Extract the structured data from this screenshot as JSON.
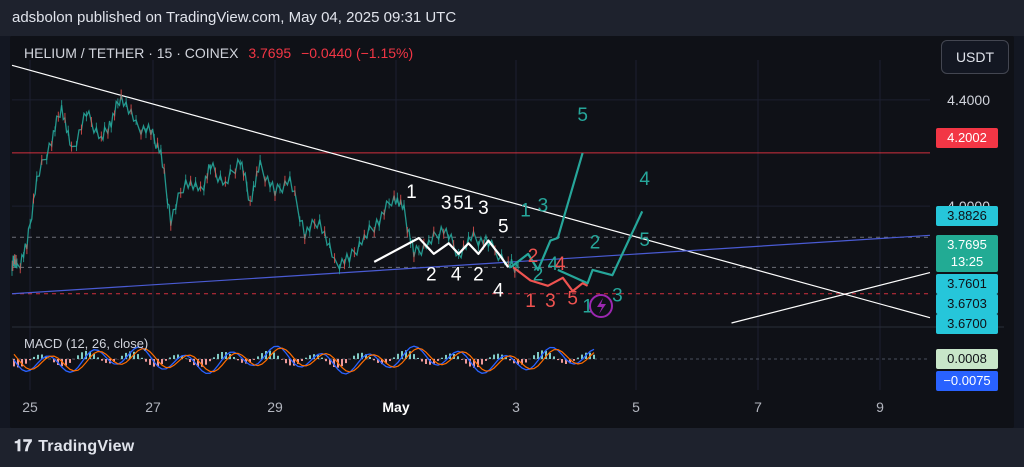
{
  "header": {
    "text": "adsbolon published on TradingView.com, May 04, 2025 09:31 UTC"
  },
  "symbol": {
    "name": "HELIUM / TETHER · 15 · COINEX",
    "price": "3.7695",
    "change": "−0.0440 (−1.15%)"
  },
  "currency_button": "USDT",
  "price_tags": [
    {
      "label": "4.2002",
      "bg": "#f23645",
      "color": "#ffffff"
    },
    {
      "label": "3.8826",
      "bg": "#26c6da",
      "color": "#0f1117"
    },
    {
      "label": "3.7695",
      "bg": "#22ab94",
      "color": "#ffffff"
    },
    {
      "label": "13:25",
      "bg": "#22ab94",
      "color": "#ffffff"
    },
    {
      "label": "3.7601",
      "bg": "#26c6da",
      "color": "#0f1117"
    },
    {
      "label": "3.6703",
      "bg": "#26c6da",
      "color": "#0f1117"
    },
    {
      "label": "3.6700",
      "bg": "#26c6da",
      "color": "#0f1117"
    }
  ],
  "macd": {
    "label": "MACD (12, 26, close)",
    "tags": [
      {
        "label": "0.0008",
        "bg": "#c8e6c9",
        "color": "#0f1117"
      },
      {
        "label": "−0.0075",
        "bg": "#2962ff",
        "color": "#ffffff"
      }
    ]
  },
  "footer": {
    "brand": "TradingView"
  },
  "chart_data": {
    "type": "line",
    "symbol": "HELIUM / TETHER",
    "interval": "15",
    "exchange": "COINEX",
    "last_price": 3.7695,
    "change": -0.044,
    "change_pct": -1.15,
    "x_ticks": [
      "25",
      "27",
      "29",
      "May",
      "3",
      "5",
      "7",
      "9"
    ],
    "y_ticks": [
      "4.4000",
      "4.0000"
    ],
    "ylim": [
      3.56,
      4.55
    ],
    "price_path": [
      {
        "t": 0,
        "p": 3.78
      },
      {
        "t": 0.05,
        "p": 3.8
      },
      {
        "t": 0.1,
        "p": 3.76
      },
      {
        "t": 0.3,
        "p": 3.85
      },
      {
        "t": 0.5,
        "p": 4.1
      },
      {
        "t": 0.8,
        "p": 4.25
      },
      {
        "t": 1.0,
        "p": 4.38
      },
      {
        "t": 1.2,
        "p": 4.2
      },
      {
        "t": 1.5,
        "p": 4.35
      },
      {
        "t": 1.8,
        "p": 4.25
      },
      {
        "t": 2.0,
        "p": 4.32
      },
      {
        "t": 2.2,
        "p": 4.42
      },
      {
        "t": 2.5,
        "p": 4.3
      },
      {
        "t": 2.8,
        "p": 4.28
      },
      {
        "t": 3.0,
        "p": 4.2
      },
      {
        "t": 3.2,
        "p": 3.95
      },
      {
        "t": 3.5,
        "p": 4.1
      },
      {
        "t": 3.8,
        "p": 4.05
      },
      {
        "t": 4.0,
        "p": 4.15
      },
      {
        "t": 4.3,
        "p": 4.08
      },
      {
        "t": 4.6,
        "p": 4.18
      },
      {
        "t": 4.8,
        "p": 4.02
      },
      {
        "t": 5.0,
        "p": 4.15
      },
      {
        "t": 5.3,
        "p": 4.05
      },
      {
        "t": 5.6,
        "p": 4.1
      },
      {
        "t": 5.9,
        "p": 3.9
      },
      {
        "t": 6.2,
        "p": 3.95
      },
      {
        "t": 6.5,
        "p": 3.78
      },
      {
        "t": 6.8,
        "p": 3.8
      },
      {
        "t": 7.1,
        "p": 3.88
      },
      {
        "t": 7.4,
        "p": 3.95
      },
      {
        "t": 7.7,
        "p": 4.04
      },
      {
        "t": 7.9,
        "p": 3.98
      },
      {
        "t": 8.1,
        "p": 3.82
      },
      {
        "t": 8.4,
        "p": 3.86
      },
      {
        "t": 8.7,
        "p": 3.92
      },
      {
        "t": 9.0,
        "p": 3.82
      },
      {
        "t": 9.3,
        "p": 3.88
      },
      {
        "t": 9.6,
        "p": 3.86
      },
      {
        "t": 10.0,
        "p": 3.78
      },
      {
        "t": 10.2,
        "p": 3.77
      }
    ],
    "hlines": [
      {
        "y": 4.2002,
        "color": "#f23645",
        "style": "solid"
      },
      {
        "y": 3.8826,
        "color": "#9598a1",
        "style": "dashed"
      },
      {
        "y": 3.7695,
        "color": "#9598a1",
        "style": "dashed"
      },
      {
        "y": 3.6703,
        "color": "#f23645",
        "style": "dashed"
      }
    ],
    "trendlines": [
      {
        "name": "descending",
        "color": "#ffffff",
        "from": [
          0,
          4.53
        ],
        "to": [
          18.5,
          3.58
        ]
      },
      {
        "name": "ascending",
        "color": "#4a5bd4",
        "from": [
          0,
          3.67
        ],
        "to": [
          18.5,
          3.89
        ]
      },
      {
        "name": "lower-right",
        "color": "#ffffff",
        "from": [
          14.5,
          3.56
        ],
        "to": [
          18.5,
          3.75
        ]
      }
    ],
    "wave_white": {
      "points": [
        [
          7.3,
          3.79
        ],
        [
          8.2,
          3.88
        ],
        [
          8.5,
          3.82
        ],
        [
          8.8,
          3.86
        ],
        [
          9.0,
          3.82
        ],
        [
          9.2,
          3.86
        ],
        [
          9.4,
          3.82
        ],
        [
          9.6,
          3.87
        ],
        [
          9.85,
          3.81
        ],
        [
          10.0,
          3.77
        ]
      ],
      "labels": [
        {
          "text": "1",
          "x": 8.05,
          "y": 4.03
        },
        {
          "text": "2",
          "x": 8.45,
          "y": 3.72
        },
        {
          "text": "3",
          "x": 8.75,
          "y": 3.99
        },
        {
          "text": "5",
          "x": 9.0,
          "y": 3.99
        },
        {
          "text": "1",
          "x": 9.2,
          "y": 3.99
        },
        {
          "text": "4",
          "x": 8.95,
          "y": 3.72
        },
        {
          "text": "2",
          "x": 9.4,
          "y": 3.72
        },
        {
          "text": "3",
          "x": 9.5,
          "y": 3.97
        },
        {
          "text": "5",
          "x": 9.9,
          "y": 3.9
        },
        {
          "text": "4",
          "x": 9.8,
          "y": 3.66
        }
      ]
    },
    "wave_green": {
      "points": [
        [
          10.05,
          3.77
        ],
        [
          10.4,
          3.82
        ],
        [
          10.6,
          3.76
        ],
        [
          10.85,
          3.87
        ],
        [
          11.0,
          3.88
        ],
        [
          11.5,
          4.2
        ]
      ],
      "labels": [
        {
          "text": "1",
          "x": 10.35,
          "y": 3.96
        },
        {
          "text": "2",
          "x": 10.6,
          "y": 3.72
        },
        {
          "text": "3",
          "x": 10.7,
          "y": 3.98
        },
        {
          "text": "4",
          "x": 10.9,
          "y": 3.76
        },
        {
          "text": "5",
          "x": 11.5,
          "y": 4.32
        }
      ]
    },
    "wave_green_2": {
      "points": [
        [
          11.0,
          3.76
        ],
        [
          11.6,
          3.71
        ],
        [
          11.7,
          3.76
        ],
        [
          12.1,
          3.74
        ],
        [
          12.7,
          3.98
        ]
      ],
      "labels": [
        {
          "text": "1",
          "x": 11.6,
          "y": 3.6
        },
        {
          "text": "2",
          "x": 11.75,
          "y": 3.84
        },
        {
          "text": "3",
          "x": 12.2,
          "y": 3.64
        },
        {
          "text": "4",
          "x": 12.75,
          "y": 4.08
        },
        {
          "text": "5",
          "x": 12.75,
          "y": 3.85
        }
      ]
    },
    "wave_red": {
      "points": [
        [
          10.1,
          3.77
        ],
        [
          10.45,
          3.72
        ],
        [
          10.8,
          3.7
        ],
        [
          11.1,
          3.73
        ],
        [
          11.3,
          3.68
        ],
        [
          11.5,
          3.71
        ],
        [
          11.6,
          3.7
        ]
      ],
      "labels": [
        {
          "text": "1",
          "x": 10.45,
          "y": 3.62
        },
        {
          "text": "2",
          "x": 10.5,
          "y": 3.79
        },
        {
          "text": "3",
          "x": 10.85,
          "y": 3.62
        },
        {
          "text": "4",
          "x": 11.05,
          "y": 3.76
        },
        {
          "text": "5",
          "x": 11.3,
          "y": 3.63
        }
      ]
    },
    "macd": {
      "name": "MACD (12, 26, close)",
      "value": 0.0008,
      "signal": -0.0075
    }
  }
}
